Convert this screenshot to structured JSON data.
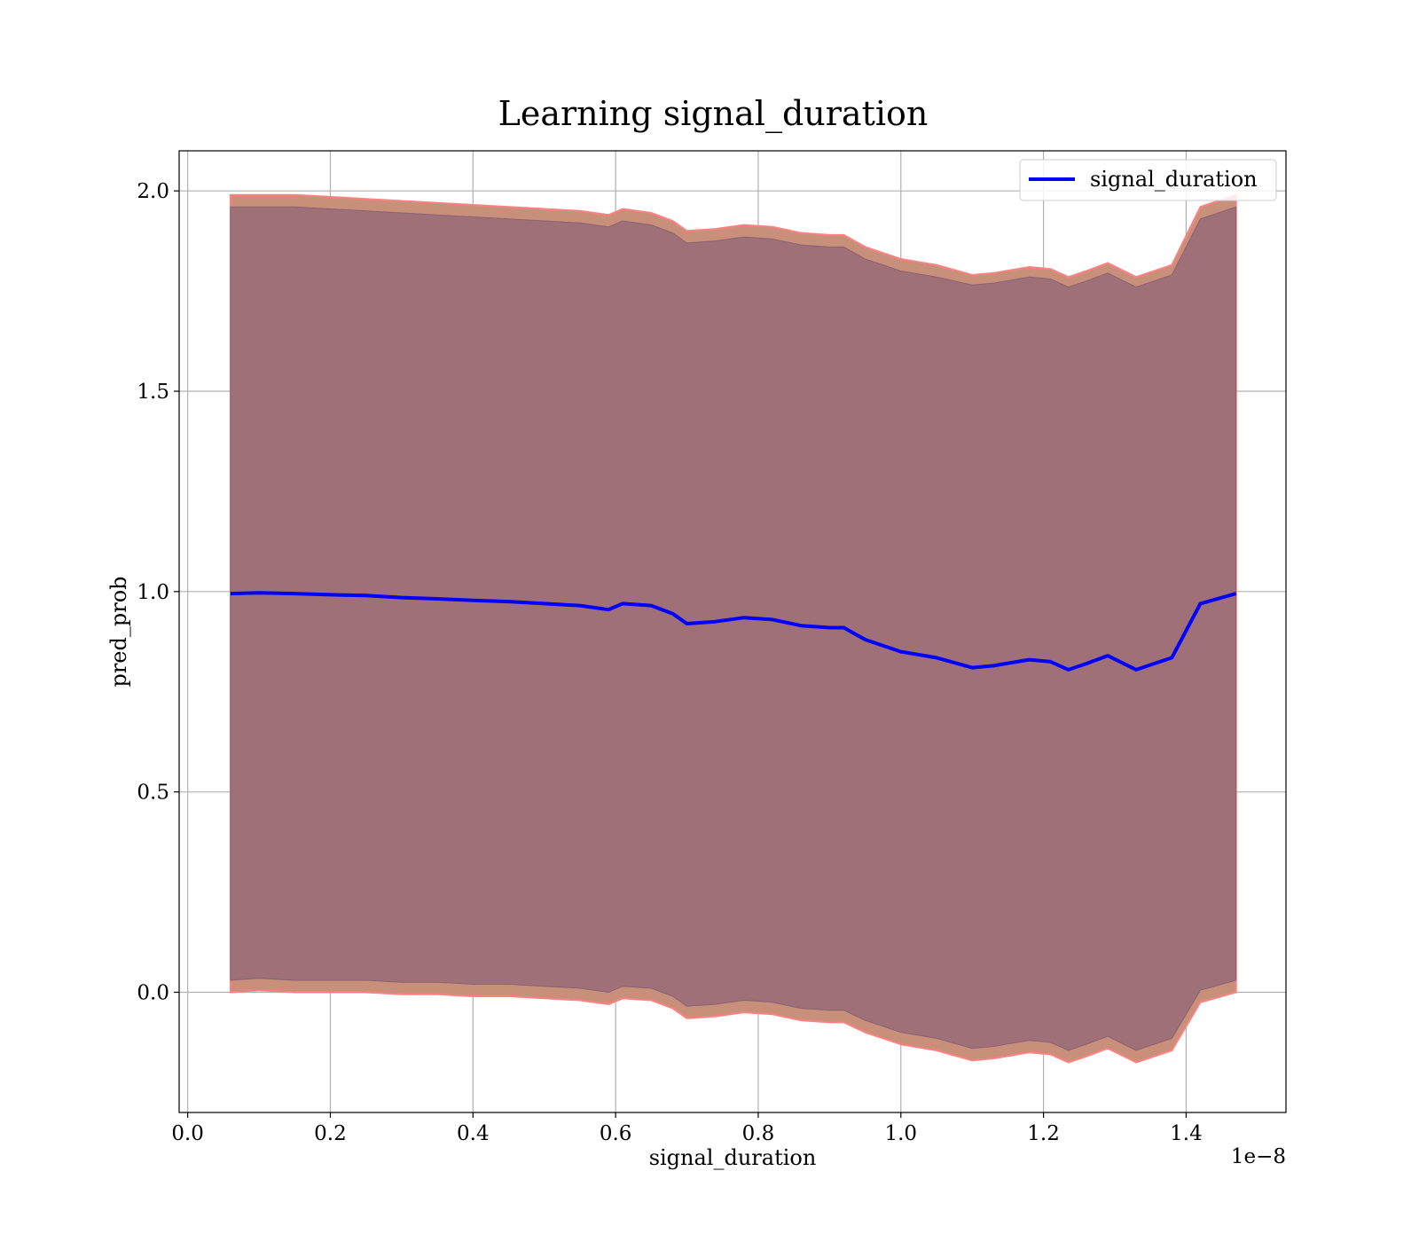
{
  "chart_data": {
    "type": "line",
    "title": "Learning signal_duration",
    "xlabel": "signal_duration",
    "ylabel": "pred_prob",
    "x_offset_text": "1e−8",
    "xlim": [
      -0.012,
      1.54
    ],
    "ylim": [
      -0.3,
      2.1
    ],
    "grid": true,
    "legend": {
      "placement": "top-right"
    },
    "x_ticks": [
      0.0,
      0.2,
      0.4,
      0.6,
      0.8,
      1.0,
      1.2,
      1.4
    ],
    "x_tick_labels": [
      "0.0",
      "0.2",
      "0.4",
      "0.6",
      "0.8",
      "1.0",
      "1.2",
      "1.4"
    ],
    "y_ticks": [
      0.0,
      0.5,
      1.0,
      1.5,
      2.0
    ],
    "y_tick_labels": [
      "0.0",
      "0.5",
      "1.0",
      "1.5",
      "2.0"
    ],
    "colors": {
      "line": "#0000ff",
      "band_outer": "#c8907a",
      "band_inner": "#a07078",
      "band_edge": "#ff8080"
    },
    "x": [
      0.06,
      0.1,
      0.15,
      0.2,
      0.25,
      0.3,
      0.35,
      0.4,
      0.45,
      0.5,
      0.55,
      0.59,
      0.61,
      0.65,
      0.68,
      0.7,
      0.74,
      0.78,
      0.82,
      0.86,
      0.9,
      0.92,
      0.95,
      1.0,
      1.05,
      1.1,
      1.13,
      1.18,
      1.21,
      1.235,
      1.26,
      1.29,
      1.33,
      1.38,
      1.42,
      1.47
    ],
    "series": [
      {
        "name": "signal_duration",
        "values": [
          0.995,
          0.997,
          0.995,
          0.992,
          0.99,
          0.985,
          0.982,
          0.978,
          0.975,
          0.97,
          0.965,
          0.955,
          0.97,
          0.965,
          0.945,
          0.92,
          0.925,
          0.935,
          0.93,
          0.915,
          0.91,
          0.91,
          0.88,
          0.85,
          0.835,
          0.81,
          0.815,
          0.83,
          0.825,
          0.805,
          0.82,
          0.84,
          0.805,
          0.835,
          0.97,
          0.995
        ],
        "band_outer_upper": [
          1.99,
          1.99,
          1.99,
          1.985,
          1.98,
          1.975,
          1.97,
          1.965,
          1.96,
          1.955,
          1.95,
          1.94,
          1.955,
          1.945,
          1.925,
          1.9,
          1.905,
          1.915,
          1.91,
          1.895,
          1.89,
          1.89,
          1.86,
          1.83,
          1.815,
          1.79,
          1.795,
          1.81,
          1.805,
          1.785,
          1.8,
          1.82,
          1.785,
          1.815,
          1.96,
          1.99
        ],
        "band_inner_upper": [
          1.96,
          1.96,
          1.96,
          1.955,
          1.95,
          1.945,
          1.94,
          1.935,
          1.93,
          1.925,
          1.92,
          1.91,
          1.925,
          1.915,
          1.895,
          1.87,
          1.875,
          1.885,
          1.88,
          1.865,
          1.86,
          1.86,
          1.83,
          1.8,
          1.785,
          1.765,
          1.77,
          1.785,
          1.78,
          1.76,
          1.775,
          1.795,
          1.76,
          1.79,
          1.93,
          1.96
        ],
        "band_inner_lower": [
          0.03,
          0.035,
          0.03,
          0.03,
          0.03,
          0.025,
          0.025,
          0.02,
          0.02,
          0.015,
          0.01,
          0.0,
          0.015,
          0.01,
          -0.01,
          -0.035,
          -0.03,
          -0.02,
          -0.025,
          -0.04,
          -0.045,
          -0.045,
          -0.07,
          -0.1,
          -0.115,
          -0.14,
          -0.135,
          -0.12,
          -0.125,
          -0.145,
          -0.13,
          -0.11,
          -0.145,
          -0.115,
          0.005,
          0.03
        ],
        "band_outer_lower": [
          0.0,
          0.005,
          0.0,
          0.0,
          0.0,
          -0.005,
          -0.005,
          -0.01,
          -0.01,
          -0.015,
          -0.02,
          -0.03,
          -0.015,
          -0.02,
          -0.04,
          -0.065,
          -0.06,
          -0.05,
          -0.055,
          -0.07,
          -0.075,
          -0.075,
          -0.1,
          -0.13,
          -0.145,
          -0.17,
          -0.165,
          -0.15,
          -0.155,
          -0.175,
          -0.16,
          -0.14,
          -0.175,
          -0.145,
          -0.025,
          0.0
        ]
      }
    ]
  }
}
